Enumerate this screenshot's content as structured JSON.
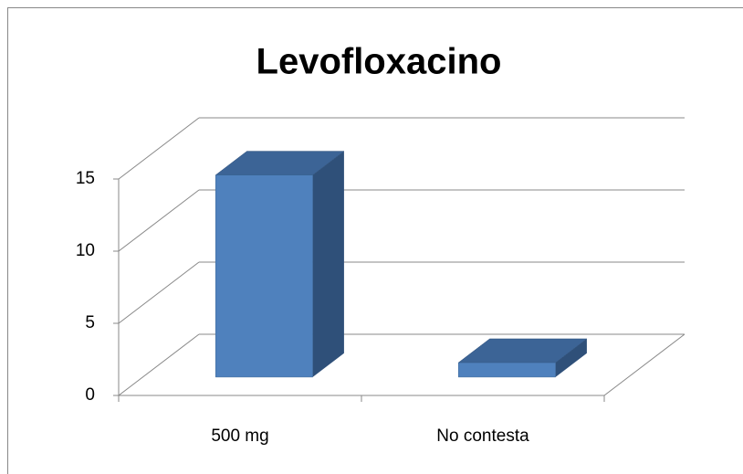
{
  "chart_data": {
    "type": "bar3d",
    "title": "Levofloxacino",
    "categories": [
      "500 mg",
      "No contesta"
    ],
    "values": [
      14,
      1
    ],
    "color": "#4f81bd",
    "ylim": [
      0,
      15
    ],
    "yticks": [
      0,
      5,
      10,
      15
    ],
    "grid": true
  }
}
